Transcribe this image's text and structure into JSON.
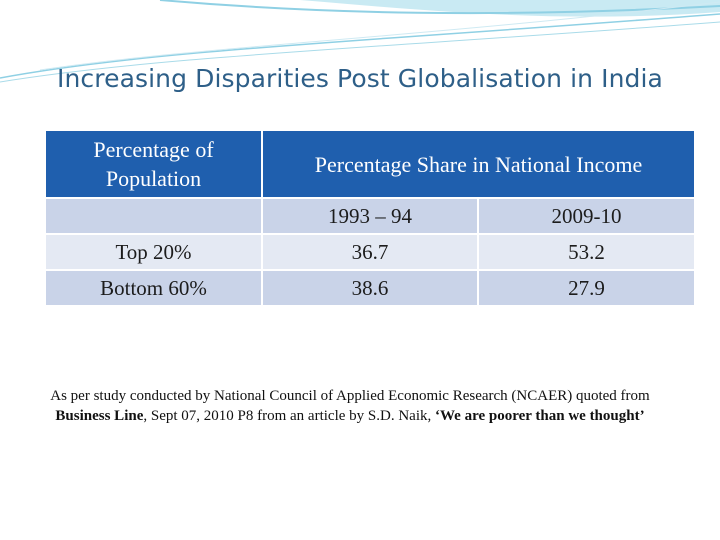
{
  "slide": {
    "title": "Increasing Disparities Post Globalisation in India"
  },
  "table": {
    "header_left": "Percentage of Population",
    "header_right": "Percentage Share in National Income",
    "period_1": "1993 – 94",
    "period_2": "2009-10",
    "rows": [
      {
        "group": "Top 20%",
        "value_1993": "36.7",
        "value_2009": "53.2"
      },
      {
        "group": "Bottom 60%",
        "value_1993": "38.6",
        "value_2009": "27.9"
      }
    ]
  },
  "caption": {
    "part1": "As per study conducted by National Council of Applied Economic Research (NCAER) quoted from ",
    "source": "Business Line",
    "part2": ", Sept 07, 2010 P8 from an article by S.D. Naik, ",
    "article_title": "‘We are poorer than we thought’"
  },
  "colors": {
    "header_bg": "#1f5fae",
    "row_odd": "#c9d3e8",
    "row_even": "#e4e9f3",
    "title_color": "#2e5f88",
    "swoosh": "#8fd0e4"
  }
}
